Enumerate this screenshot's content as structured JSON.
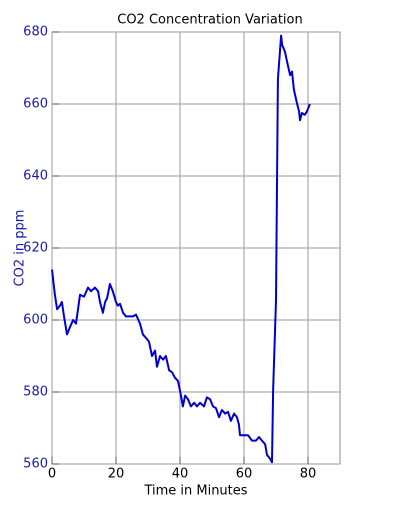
{
  "chart_data": {
    "type": "line",
    "title": "CO2 Concentration Variation",
    "x_label": "Time in Minutes",
    "y_label": "CO2 in ppm",
    "x": [
      0,
      0.9,
      1.6,
      2.5,
      3.1,
      3.75,
      4.7,
      5.6,
      6.6,
      7.5,
      8.75,
      10,
      11.25,
      12.2,
      13.4,
      14.4,
      15,
      15.9,
      16.6,
      17.2,
      18.1,
      19,
      20,
      20.6,
      21.25,
      22.2,
      23.1,
      24.4,
      25.3,
      26.25,
      27.5,
      28.4,
      29.4,
      30.3,
      31.25,
      32.2,
      32.8,
      33.75,
      34.7,
      35.6,
      36.6,
      37.5,
      38.4,
      39.4,
      40.3,
      40.9,
      41.6,
      42.5,
      43.4,
      44.4,
      45.3,
      46.25,
      47.5,
      48.4,
      49.4,
      50.3,
      51.25,
      52.2,
      53.1,
      54.1,
      55,
      55.9,
      56.9,
      57.8,
      58.4,
      58.75,
      60,
      61.25,
      62.5,
      63.75,
      64.7,
      65.6,
      66.6,
      67.2,
      68.1,
      68.75,
      69.1,
      70,
      70.6,
      71.6,
      71.9,
      72.8,
      73.4,
      74.4,
      75,
      75.6,
      76.6,
      77.2,
      77.5,
      78.1,
      79,
      79.7,
      80.6
    ],
    "series": [
      {
        "name": "CO2",
        "color": "#0000cc",
        "values": [
          614,
          607,
          603,
          604,
          605,
          601,
          596,
          598,
          600,
          599,
          607,
          606.5,
          609,
          608,
          609,
          608,
          605,
          602,
          605,
          606,
          610,
          608,
          605,
          604,
          604.5,
          602,
          601,
          601,
          601,
          601.5,
          599,
          596,
          595,
          594,
          590,
          591.5,
          587,
          590,
          589,
          590,
          586,
          585.5,
          584,
          583,
          579,
          576,
          579,
          578,
          576,
          577,
          576,
          577,
          576,
          578.5,
          578,
          576,
          575.5,
          573,
          575,
          574,
          574.5,
          572,
          574,
          573,
          571,
          568,
          568,
          568,
          566.5,
          566.5,
          567.5,
          566.5,
          565.5,
          562.5,
          561.5,
          560.5,
          580.5,
          605.5,
          667,
          679,
          676.5,
          674.5,
          672,
          668,
          669,
          664,
          660,
          658,
          655.5,
          657.5,
          657,
          658,
          660
        ]
      }
    ],
    "xlim": [
      0,
      90
    ],
    "xticks": [
      0,
      20,
      40,
      60,
      80
    ],
    "ylim": [
      560,
      680
    ],
    "yticks": [
      560,
      580,
      600,
      620,
      640,
      660,
      680
    ],
    "grid": true
  }
}
